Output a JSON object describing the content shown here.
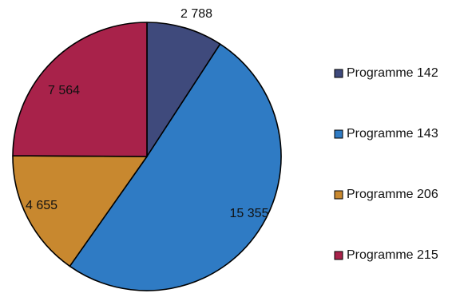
{
  "chart_data": {
    "type": "pie",
    "title": "",
    "legend_position": "right",
    "start_angle": "12 o'clock",
    "direction": "clockwise",
    "slices": [
      {
        "label": "Programme 142",
        "value": 2788,
        "display": "2 788",
        "color": "#3f4a7c"
      },
      {
        "label": "Programme 143",
        "value": 15355,
        "display": "15 355",
        "color": "#2f7bc4"
      },
      {
        "label": "Programme 206",
        "value": 4655,
        "display": "4 655",
        "color": "#c8882f"
      },
      {
        "label": "Programme 215",
        "value": 7564,
        "display": "7 564",
        "color": "#a8224a"
      }
    ]
  }
}
